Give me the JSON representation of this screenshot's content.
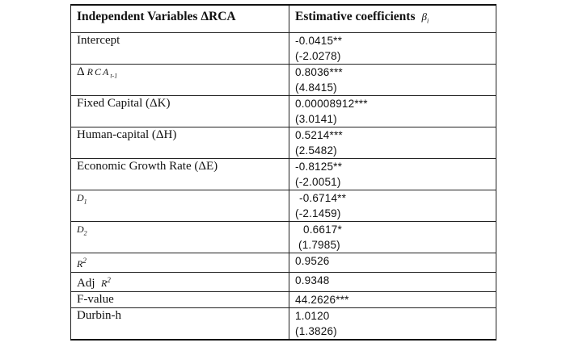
{
  "header": {
    "col1": "Independent Variables ΔRCA",
    "col2": "Estimative coefficients",
    "beta_symbol": "β",
    "beta_subscript": "i"
  },
  "rows": [
    {
      "label": "Intercept",
      "coef": "-0.0415**",
      "t": "(-2.0278)"
    },
    {
      "label_prefix": "Δ",
      "label_symbol": "RCA",
      "label_sub": "t-1",
      "coef": "0.8036***",
      "t": "(4.8415)"
    },
    {
      "label": "Fixed Capital (ΔK)",
      "coef": "0.00008912***",
      "t": "(3.0141)"
    },
    {
      "label": "Human-capital (ΔH)",
      "coef": "0.5214***",
      "t": "(2.5482)"
    },
    {
      "label": "Economic Growth Rate (ΔE)",
      "coef": "-0.8125**",
      "t": "(-2.0051)"
    },
    {
      "label_symbol": "D",
      "label_sub": "1",
      "coef": "-0.6714**",
      "t": "(-2.1459)"
    },
    {
      "label_symbol": "D",
      "label_sub": "2",
      "coef": "0.6617*",
      "t": "(1.7985)"
    },
    {
      "label_symbol": "R",
      "label_sup": "2",
      "coef": "0.9526"
    },
    {
      "label": "Adj",
      "label_symbol": "R",
      "label_sup": "2",
      "coef": "0.9348"
    },
    {
      "label": "F-value",
      "coef": "44.2626***"
    },
    {
      "label": "Durbin-h",
      "coef": "1.0120",
      "t": "(1.3826)"
    }
  ]
}
